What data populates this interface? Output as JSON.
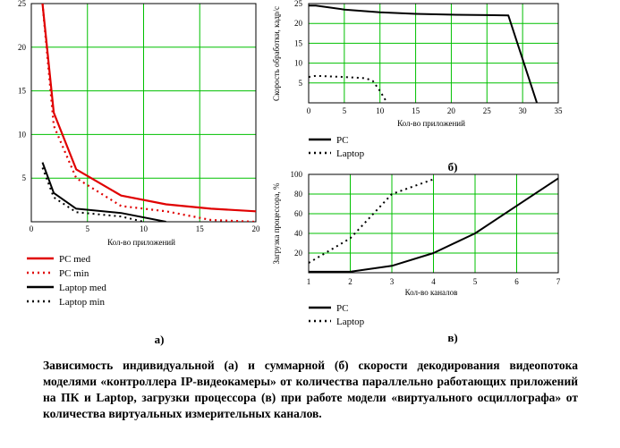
{
  "chart_data": [
    {
      "type": "line",
      "xlabel": "Кол-во приложений",
      "ylabel": "",
      "xlim": [
        0,
        20
      ],
      "ylim": [
        0,
        25
      ],
      "xticks": [
        0,
        5,
        10,
        15,
        20
      ],
      "yticks": [
        5,
        10,
        15,
        20,
        25
      ],
      "grid": true,
      "legend_position": "bottom",
      "panel_label": "а)",
      "series": [
        {
          "name": "PC med",
          "color": "#e00000",
          "dash": "solid",
          "x": [
            1,
            2,
            4,
            8,
            12,
            16,
            20
          ],
          "y": [
            25,
            12.5,
            6,
            3,
            2,
            1.5,
            1.2
          ]
        },
        {
          "name": "PC min",
          "color": "#e00000",
          "dash": "dotted",
          "x": [
            1,
            2,
            4,
            8,
            12,
            16,
            20
          ],
          "y": [
            25,
            11,
            5,
            1.8,
            1.2,
            0.2,
            0
          ]
        },
        {
          "name": "Laptop med",
          "color": "#000000",
          "dash": "solid",
          "x": [
            1,
            2,
            4,
            8,
            12
          ],
          "y": [
            6.8,
            3.3,
            1.5,
            1,
            0
          ]
        },
        {
          "name": "Laptop min",
          "color": "#000000",
          "dash": "dotted",
          "x": [
            1,
            2,
            4,
            8,
            10
          ],
          "y": [
            6.2,
            2.8,
            1.1,
            0.6,
            0
          ]
        }
      ]
    },
    {
      "type": "line",
      "xlabel": "Кол-во приложений",
      "ylabel": "Скорость обработки, кадр/с",
      "xlim": [
        0,
        35
      ],
      "ylim": [
        0,
        25
      ],
      "xticks": [
        0,
        5,
        10,
        15,
        20,
        25,
        30,
        35
      ],
      "yticks": [
        5,
        10,
        15,
        20,
        25
      ],
      "grid": true,
      "legend_position": "bottom",
      "panel_label": "б)",
      "series": [
        {
          "name": "PC",
          "color": "#000000",
          "dash": "solid",
          "x": [
            0,
            1,
            5,
            10,
            15,
            20,
            25,
            28,
            32
          ],
          "y": [
            24.5,
            24.5,
            23.5,
            22.8,
            22.4,
            22.2,
            22.1,
            22,
            0
          ]
        },
        {
          "name": "Laptop",
          "color": "#000000",
          "dash": "dotted",
          "x": [
            0,
            1,
            5,
            8,
            9,
            10,
            11
          ],
          "y": [
            6.5,
            6.8,
            6.5,
            6.2,
            5.5,
            3,
            0
          ]
        }
      ]
    },
    {
      "type": "line",
      "xlabel": "Кол-во каналов",
      "ylabel": "Загрузка процессора, %",
      "xlim": [
        1,
        7
      ],
      "ylim": [
        0,
        100
      ],
      "xticks": [
        1,
        2,
        3,
        4,
        5,
        6,
        7
      ],
      "yticks": [
        20,
        40,
        60,
        80,
        100
      ],
      "grid": true,
      "legend_position": "bottom",
      "panel_label": "в)",
      "series": [
        {
          "name": "PC",
          "color": "#000000",
          "dash": "solid",
          "x": [
            1,
            2,
            3,
            4,
            5,
            6,
            7
          ],
          "y": [
            1,
            1,
            7,
            20,
            40,
            68,
            96
          ]
        },
        {
          "name": "Laptop",
          "color": "#000000",
          "dash": "dotted",
          "x": [
            1,
            2,
            3,
            4
          ],
          "y": [
            10,
            35,
            80,
            95
          ]
        }
      ]
    }
  ],
  "caption": "Зависимость индивидуальной (а) и суммарной (б) скорости декодирования видеопотока моделями «контроллера IP-видеокамеры» от количества параллельно работающих приложений на ПК и Laptop, загрузки процессора (в) при работе модели «виртуального осциллографа» от количества виртуальных измерительных каналов."
}
